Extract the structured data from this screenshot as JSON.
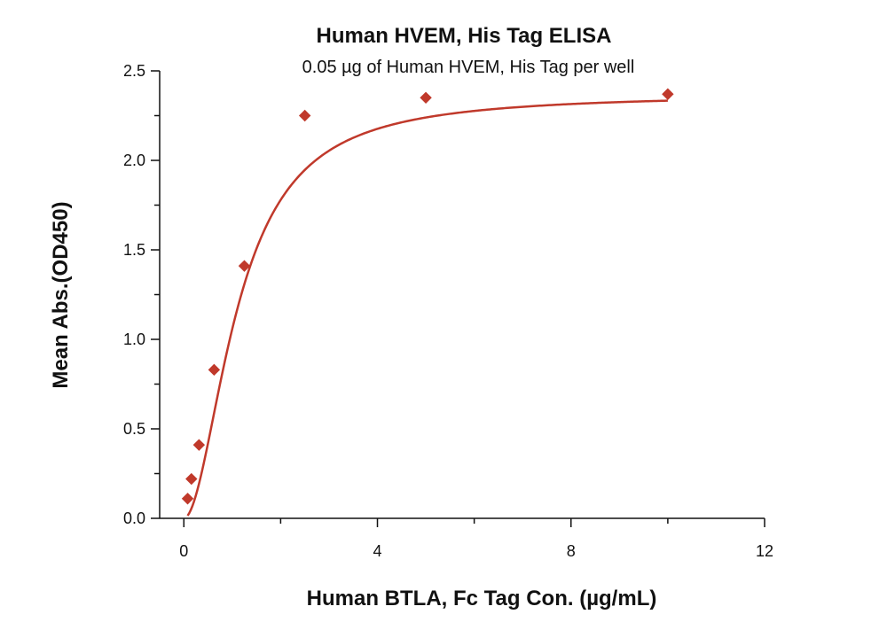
{
  "chart_data": {
    "type": "scatter",
    "title": "Human HVEM, His Tag ELISA",
    "subtitle": "0.05 µg of Human HVEM, His Tag per well",
    "xlabel": "Human BTLA, Fc Tag Con. (µg/mL)",
    "ylabel": "Mean Abs.(OD450)",
    "xlim": [
      -0.5,
      12
    ],
    "ylim": [
      0,
      2.5
    ],
    "x_ticks": [
      0,
      4,
      8,
      12
    ],
    "x_minor_ticks": [
      2,
      6,
      10
    ],
    "y_ticks": [
      0.0,
      0.5,
      1.0,
      1.5,
      2.0,
      2.5
    ],
    "y_tick_labels": [
      "0.0",
      "0.5",
      "1.0",
      "1.5",
      "2.0",
      "2.5"
    ],
    "y_minor_ticks": [
      0.25,
      0.75,
      1.25,
      1.75,
      2.25
    ],
    "grid": false,
    "color": "#c0392b",
    "series": [
      {
        "points": [
          {
            "x": 0.078,
            "y": 0.11
          },
          {
            "x": 0.156,
            "y": 0.22
          },
          {
            "x": 0.313,
            "y": 0.41
          },
          {
            "x": 0.625,
            "y": 0.83
          },
          {
            "x": 1.25,
            "y": 1.41
          },
          {
            "x": 2.5,
            "y": 2.25
          },
          {
            "x": 5.0,
            "y": 2.35
          },
          {
            "x": 10.0,
            "y": 2.37
          }
        ],
        "fit": {
          "model": "4PL",
          "bottom": 0.0,
          "top": 2.37,
          "ec50": 1.12,
          "hill": 1.9
        }
      }
    ]
  }
}
